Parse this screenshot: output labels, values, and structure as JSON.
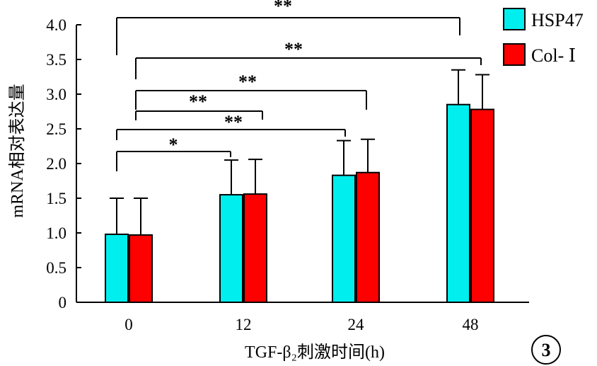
{
  "chart_data": {
    "type": "bar",
    "categories": [
      "0",
      "12",
      "24",
      "48"
    ],
    "series": [
      {
        "name": "HSP47",
        "color": "#00eeee",
        "values": [
          0.98,
          1.55,
          1.83,
          2.85
        ],
        "errors": [
          0.52,
          0.5,
          0.5,
          0.5
        ]
      },
      {
        "name": "Col- Ⅰ",
        "color": "#ff0000",
        "values": [
          0.97,
          1.56,
          1.87,
          2.78
        ],
        "errors": [
          0.53,
          0.5,
          0.48,
          0.5
        ]
      }
    ],
    "ylim": [
      0,
      4.0
    ],
    "yticks": [
      "0",
      "0.5",
      "1.0",
      "1.5",
      "2.0",
      "2.5",
      "3.0",
      "3.5",
      "4.0"
    ],
    "ylabel": "mRNA相对表达量",
    "xlabel": "TGF-β₂刺激时间(h)",
    "legend_position": "top-right",
    "grid": false,
    "significance": [
      {
        "from": 0,
        "to": 3,
        "label": "**"
      },
      {
        "from": 0,
        "to": 3,
        "label": "**"
      },
      {
        "from": 0,
        "to": 2,
        "label": "**"
      },
      {
        "from": 0,
        "to": 1,
        "label": "**"
      },
      {
        "from": 0,
        "to": 2,
        "label": "**"
      },
      {
        "from": 0,
        "to": 1,
        "label": "*"
      }
    ],
    "panel_label": "3"
  }
}
